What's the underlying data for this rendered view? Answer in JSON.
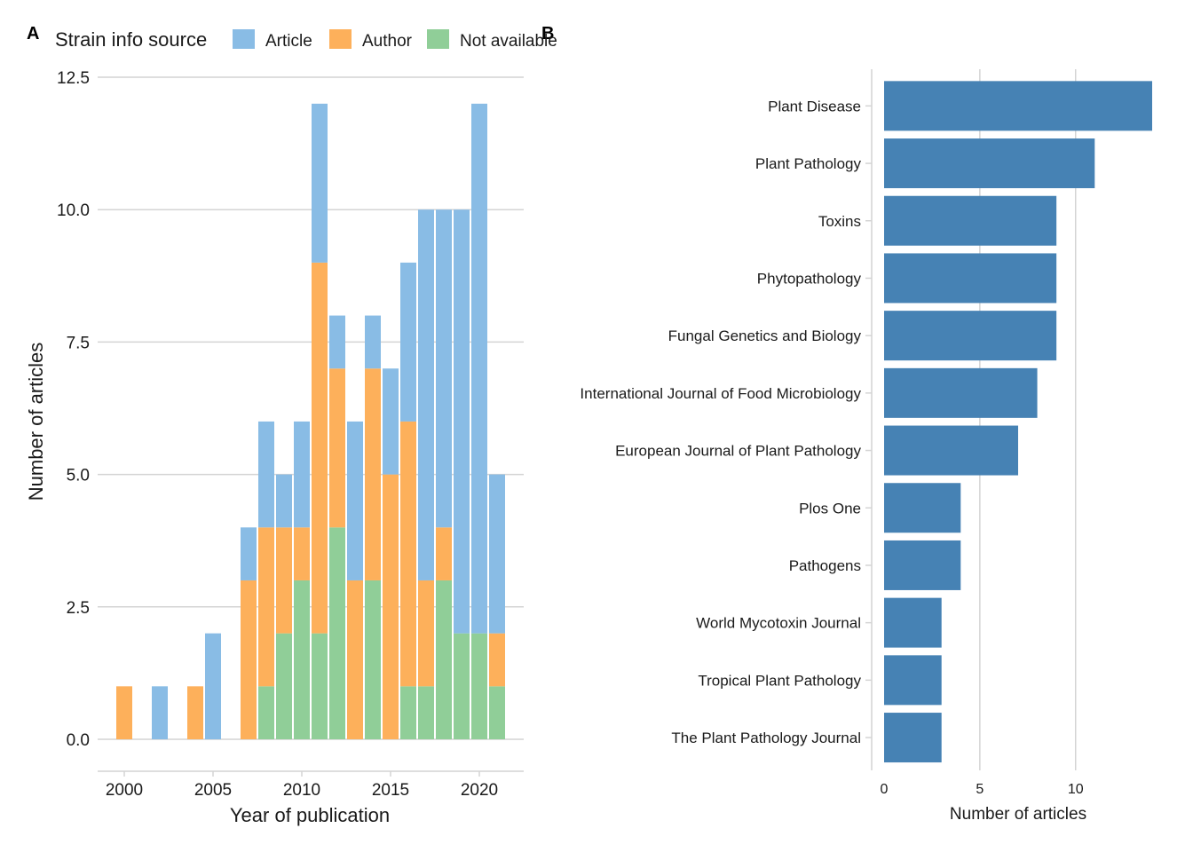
{
  "panels": {
    "a_label": "A",
    "b_label": "B"
  },
  "legend": {
    "title": "Strain info source",
    "items": [
      "Article",
      "Author",
      "Not available"
    ]
  },
  "colors": {
    "article": "#89BCE5",
    "author": "#FDB05B",
    "not_available": "#90CE98",
    "journal_bar": "#4682B4",
    "grid": "#D4D4D4"
  },
  "chart_data": [
    {
      "type": "bar",
      "stacked": true,
      "xlabel": "Year of publication",
      "ylabel": "Number of articles",
      "ylim": [
        0,
        12.5
      ],
      "xlim": [
        1998.5,
        2022.5
      ],
      "yticks": [
        "0.0",
        "2.5",
        "5.0",
        "7.5",
        "10.0",
        "12.5"
      ],
      "xticks": [
        "2000",
        "2005",
        "2010",
        "2015",
        "2020"
      ],
      "legend_position": "top",
      "x": [
        2000,
        2002,
        2004,
        2005,
        2007,
        2008,
        2009,
        2010,
        2011,
        2012,
        2013,
        2014,
        2015,
        2016,
        2017,
        2018,
        2019,
        2020,
        2021
      ],
      "series": [
        {
          "name": "Not available",
          "values": [
            0,
            0,
            0,
            0,
            0,
            1,
            2,
            3,
            2,
            4,
            0,
            3,
            0,
            1,
            1,
            3,
            2,
            2,
            1
          ]
        },
        {
          "name": "Author",
          "values": [
            1,
            0,
            1,
            0,
            3,
            3,
            2,
            1,
            7,
            3,
            3,
            4,
            5,
            5,
            2,
            1,
            0,
            0,
            1
          ]
        },
        {
          "name": "Article",
          "values": [
            0,
            1,
            0,
            2,
            1,
            2,
            1,
            2,
            3,
            1,
            3,
            1,
            2,
            3,
            7,
            6,
            8,
            10,
            3
          ]
        }
      ]
    },
    {
      "type": "bar",
      "orientation": "horizontal",
      "xlabel": "Number of articles",
      "ylabel": "",
      "xlim": [
        0,
        14
      ],
      "xticks": [
        "0",
        "5",
        "10"
      ],
      "categories": [
        "Plant Disease",
        "Plant Pathology",
        "Toxins",
        "Phytopathology",
        "Fungal Genetics and Biology",
        "International Journal of Food Microbiology",
        "European Journal of Plant Pathology",
        "Plos One",
        "Pathogens",
        "World Mycotoxin Journal",
        "Tropical Plant Pathology",
        "The Plant Pathology Journal"
      ],
      "values": [
        14,
        11,
        9,
        9,
        9,
        8,
        7,
        4,
        4,
        3,
        3,
        3
      ]
    }
  ]
}
